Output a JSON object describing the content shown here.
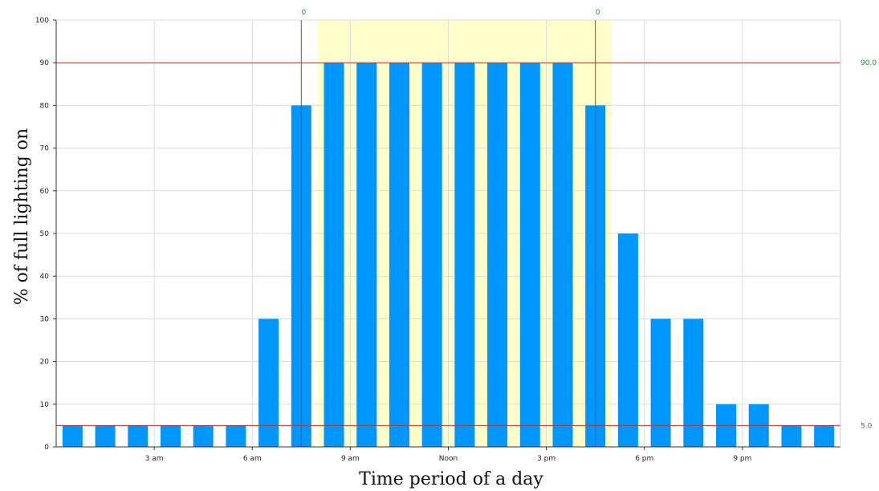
{
  "chart_data": {
    "type": "bar",
    "xlabel": "Time period of a day",
    "ylabel": "% of full lighting on",
    "ylim": [
      0,
      100
    ],
    "yticks": [
      0,
      10,
      20,
      30,
      40,
      50,
      60,
      70,
      80,
      90,
      100
    ],
    "xticks": [
      {
        "hour": 3,
        "label": "3 am"
      },
      {
        "hour": 6,
        "label": "6 am"
      },
      {
        "hour": 9,
        "label": "9 am"
      },
      {
        "hour": 12,
        "label": "Noon"
      },
      {
        "hour": 15,
        "label": "3 pm"
      },
      {
        "hour": 18,
        "label": "6 pm"
      },
      {
        "hour": 21,
        "label": "9 pm"
      }
    ],
    "hours": [
      1,
      2,
      3,
      4,
      5,
      6,
      7,
      8,
      9,
      10,
      11,
      12,
      13,
      14,
      15,
      16,
      17,
      18,
      19,
      20,
      21,
      22,
      23,
      24
    ],
    "values": [
      5,
      5,
      5,
      5,
      5,
      5,
      30,
      80,
      90,
      90,
      90,
      90,
      90,
      90,
      90,
      90,
      80,
      50,
      30,
      30,
      10,
      10,
      5,
      5
    ],
    "bar_color": "#0096ff",
    "highlight_band": {
      "from_hour": 8,
      "to_hour": 17,
      "color": "#ffffcc"
    },
    "reference_lines": [
      {
        "value": 90,
        "label": "90.0",
        "color": "#b03a2e"
      },
      {
        "value": 5,
        "label": "5.0",
        "color": "#b03a2e"
      }
    ],
    "markers": [
      {
        "hour": 7.5,
        "label": "0",
        "color": "#b03a2e"
      },
      {
        "hour": 16.5,
        "label": "0",
        "color": "#b03a2e"
      }
    ],
    "label_color": "#2e8b2e",
    "grid": true
  }
}
